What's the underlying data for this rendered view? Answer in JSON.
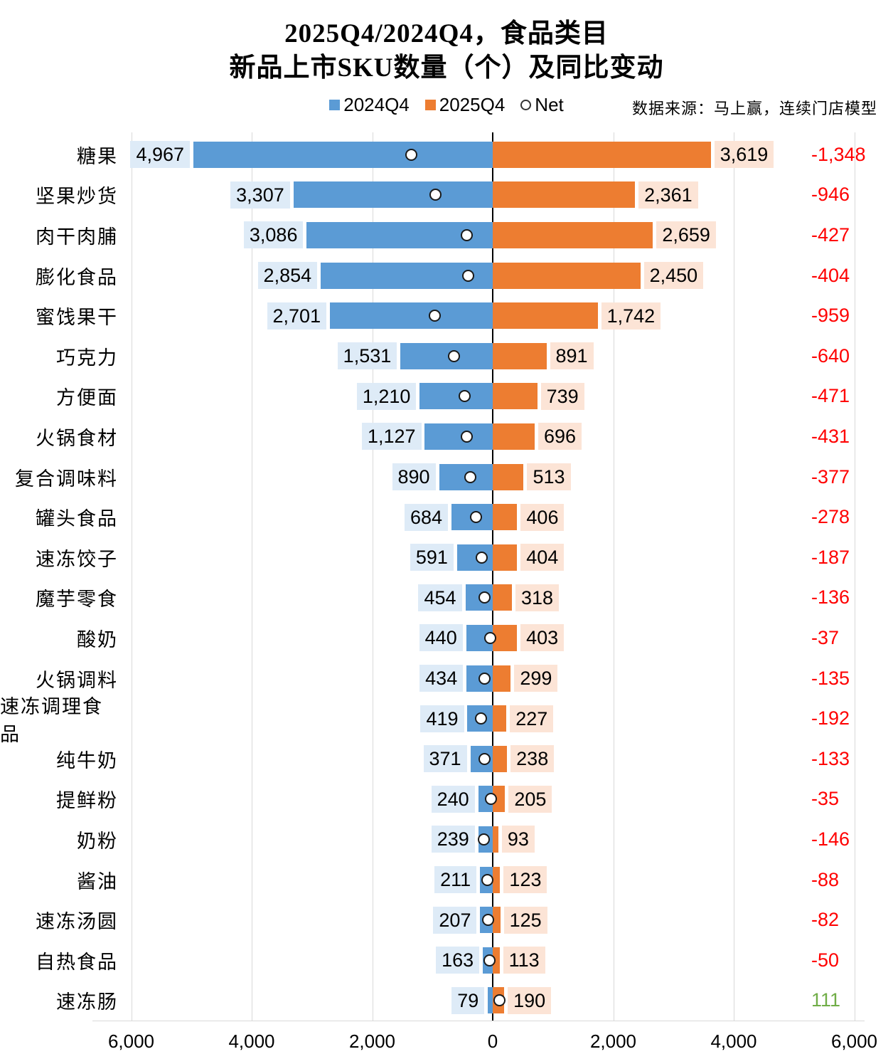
{
  "title": {
    "line1": "2025Q4/2024Q4，食品类目",
    "line2": "新品上市SKU数量（个）及同比变动"
  },
  "source": "数据来源：马上赢，连续门店模型",
  "legend": [
    {
      "label": "2024Q4",
      "swatch": "square",
      "color": "#5b9bd5"
    },
    {
      "label": "2025Q4",
      "swatch": "square",
      "color": "#ed7d31"
    },
    {
      "label": "Net",
      "swatch": "circle",
      "color": "#ffffff"
    }
  ],
  "chart_data": {
    "type": "bar",
    "variant": "diverging-horizontal-tornado",
    "title": "2025Q4/2024Q4，食品类目 新品上市SKU数量（个）及同比变动",
    "categories": [
      "糖果",
      "坚果炒货",
      "肉干肉脯",
      "膨化食品",
      "蜜饯果干",
      "巧克力",
      "方便面",
      "火锅食材",
      "复合调味料",
      "罐头食品",
      "速冻饺子",
      "魔芋零食",
      "酸奶",
      "火锅调料",
      "速冻调理食品",
      "纯牛奶",
      "提鲜粉",
      "奶粉",
      "酱油",
      "速冻汤圆",
      "自热食品",
      "速冻肠"
    ],
    "series": [
      {
        "name": "2024Q4",
        "side": "left",
        "color": "#5b9bd5",
        "values": [
          4967,
          3307,
          3086,
          2854,
          2701,
          1531,
          1210,
          1127,
          890,
          684,
          591,
          454,
          440,
          434,
          419,
          371,
          240,
          239,
          211,
          207,
          163,
          79
        ]
      },
      {
        "name": "2025Q4",
        "side": "right",
        "color": "#ed7d31",
        "values": [
          3619,
          2361,
          2659,
          2450,
          1742,
          891,
          739,
          696,
          513,
          406,
          404,
          318,
          403,
          299,
          227,
          238,
          205,
          93,
          123,
          125,
          113,
          190
        ]
      },
      {
        "name": "Net",
        "type": "point-marker",
        "values": [
          -1348,
          -946,
          -427,
          -404,
          -959,
          -640,
          -471,
          -431,
          -377,
          -278,
          -187,
          -136,
          -37,
          -135,
          -192,
          -133,
          -35,
          -146,
          -88,
          -82,
          -50,
          111
        ]
      }
    ],
    "axis": {
      "tick_labels": [
        "6,000",
        "4,000",
        "2,000",
        "0",
        "2,000",
        "4,000",
        "6,000"
      ],
      "tick_values": [
        -6000,
        -4000,
        -2000,
        0,
        2000,
        4000,
        6000
      ],
      "max_abs": 6000,
      "grid": true
    },
    "legend_position": "top-center",
    "colors": {
      "bar_left": "#5b9bd5",
      "bar_right": "#ed7d31",
      "label_bg_left": "#deebf7",
      "label_bg_right": "#fce4d6",
      "net_negative": "#ff0000",
      "net_positive": "#70ad47",
      "gridline": "#d9d9d9",
      "zero_axis": "#000000"
    }
  }
}
